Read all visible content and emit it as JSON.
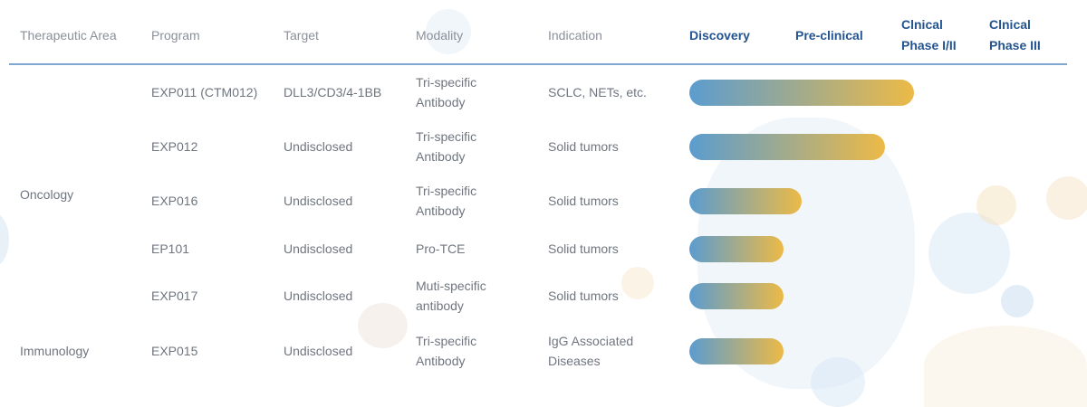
{
  "headers": {
    "therapeutic_area": "Therapeutic Area",
    "program": "Program",
    "target": "Target",
    "modality": "Modality",
    "indication": "Indication",
    "discovery": "Discovery",
    "preclinical": "Pre-clinical",
    "phase12_line1": "Clnical",
    "phase12_line2": "Phase I/II",
    "phase3_line1": "Clnical",
    "phase3_line2": "Phase III"
  },
  "areas": {
    "oncology": "Oncology",
    "immunology": "Immunology"
  },
  "rows": [
    {
      "program": "EXP011 (CTM012)",
      "target": "DLL3/CD3/4-1BB",
      "modality_line1": "Tri-specific",
      "modality_line2": "Antibody",
      "indication_line1": "SCLC, NETs, etc.",
      "indication_line2": "",
      "progress": 0.62
    },
    {
      "program": "EXP012",
      "target": "Undisclosed",
      "modality_line1": "Tri-specific",
      "modality_line2": "Antibody",
      "indication_line1": "Solid tumors",
      "indication_line2": "",
      "progress": 0.54
    },
    {
      "program": "EXP016",
      "target": "Undisclosed",
      "modality_line1": "Tri-specific",
      "modality_line2": "Antibody",
      "indication_line1": "Solid tumors",
      "indication_line2": "",
      "progress": 0.31
    },
    {
      "program": "EP101",
      "target": "Undisclosed",
      "modality_line1": "Pro-TCE",
      "modality_line2": "",
      "indication_line1": "Solid tumors",
      "indication_line2": "",
      "progress": 0.26
    },
    {
      "program": "EXP017",
      "target": "Undisclosed",
      "modality_line1": "Muti-specific",
      "modality_line2": "antibody",
      "indication_line1": "Solid tumors",
      "indication_line2": "",
      "progress": 0.26
    },
    {
      "program": "EXP015",
      "target": "Undisclosed",
      "modality_line1": "Tri-specific",
      "modality_line2": "Antibody",
      "indication_line1": "IgG Associated",
      "indication_line2": "Diseases",
      "progress": 0.26
    }
  ],
  "colors": {
    "bar_start": "#5b9ccf",
    "bar_end": "#ecba47",
    "phase_header": "#24548f",
    "rule": "#7fa7cf"
  }
}
